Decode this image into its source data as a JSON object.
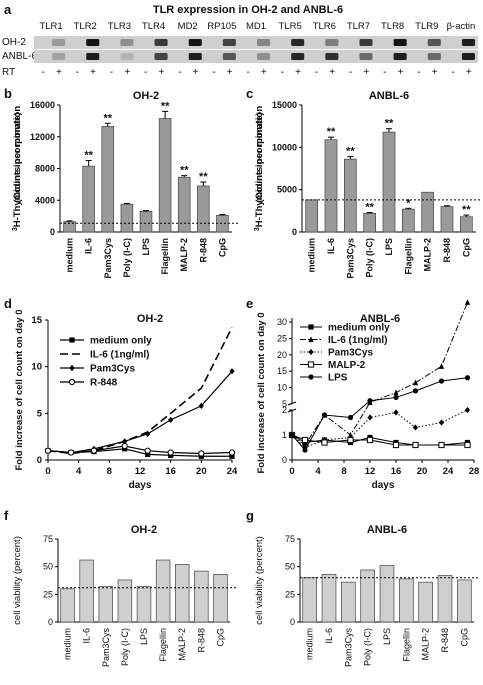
{
  "figure_title": "TLR expression in OH-2 and ANBL-6",
  "panel_letters": [
    "a",
    "b",
    "c",
    "d",
    "e",
    "f",
    "g"
  ],
  "gel": {
    "lanes": [
      "TLR1",
      "TLR2",
      "TLR3",
      "TLR4",
      "MD2",
      "RP105",
      "MD1",
      "TLR5",
      "TLR6",
      "TLR7",
      "TLR8",
      "TLR9",
      "β-actin"
    ],
    "rows": [
      "OH-2",
      "ANBL-6"
    ],
    "rt_label": "RT",
    "rt_marks": [
      "-",
      "+",
      "-",
      "+",
      "-",
      "+",
      "-",
      "+",
      "-",
      "+",
      "-",
      "+",
      "-",
      "+",
      "-",
      "+",
      "-",
      "+",
      "-",
      "+",
      "-",
      "+",
      "-",
      "+",
      "-",
      "+"
    ],
    "band_intensity": {
      "OH-2": [
        [
          0,
          0.25
        ],
        [
          0,
          0.95
        ],
        [
          0,
          0.3
        ],
        [
          0,
          0.75
        ],
        [
          0,
          0.95
        ],
        [
          0,
          0.7
        ],
        [
          0,
          0.35
        ],
        [
          0,
          0.85
        ],
        [
          0,
          0.4
        ],
        [
          0,
          0.75
        ],
        [
          0,
          0.95
        ],
        [
          0,
          0.6
        ],
        [
          0,
          0.9
        ]
      ],
      "ANBL-6": [
        [
          0,
          0.2
        ],
        [
          0,
          0.9
        ],
        [
          0,
          0.1
        ],
        [
          0,
          0.7
        ],
        [
          0,
          0.9
        ],
        [
          0,
          0.6
        ],
        [
          0,
          0.3
        ],
        [
          0,
          0.85
        ],
        [
          0,
          0.8
        ],
        [
          0,
          0.5
        ],
        [
          0,
          0.9
        ],
        [
          0,
          0.5
        ],
        [
          0,
          0.9
        ]
      ]
    }
  },
  "chart_data": [
    {
      "panel": "b",
      "type": "bar",
      "title": "OH-2",
      "ylabel": "3H-Thymidine incorporation (Counts per minute)",
      "ylim": [
        0,
        16000
      ],
      "yticks": [
        0,
        4000,
        8000,
        12000,
        16000
      ],
      "categories": [
        "medium",
        "IL-6",
        "Pam3Cys",
        "Poly (I-C)",
        "LPS",
        "Flagellin",
        "MALP-2",
        "R-848",
        "CpG"
      ],
      "values": [
        1300,
        8300,
        13300,
        3500,
        2600,
        14300,
        6900,
        5800,
        2100
      ],
      "errors": [
        100,
        700,
        400,
        100,
        100,
        900,
        200,
        500,
        100
      ],
      "annotations": [
        "",
        "**",
        "**",
        "",
        "",
        "**",
        "**",
        "**",
        ""
      ],
      "baseline": 1100
    },
    {
      "panel": "c",
      "type": "bar",
      "title": "ANBL-6",
      "ylabel": "3H-Thymidine incorporation (Counts per minute)",
      "ylim": [
        0,
        15000
      ],
      "yticks": [
        0,
        5000,
        10000,
        15000
      ],
      "categories": [
        "medium",
        "IL-6",
        "Pam3Cys",
        "Poly (I-C)",
        "LPS",
        "Flagellin",
        "MALP-2",
        "R-848",
        "CpG"
      ],
      "values": [
        3800,
        10900,
        8600,
        2200,
        11800,
        2700,
        4700,
        3000,
        1800
      ],
      "errors": [
        0,
        300,
        300,
        100,
        400,
        100,
        0,
        100,
        200
      ],
      "annotations": [
        "",
        "**",
        "**",
        "**",
        "**",
        "*",
        "",
        "",
        "**"
      ],
      "baseline": 3800
    },
    {
      "panel": "d",
      "type": "line",
      "title": "OH-2",
      "xlabel": "days",
      "ylabel": "Fold increase of cell count on day 0",
      "xlim": [
        0,
        24
      ],
      "ylim": [
        0,
        15
      ],
      "xticks": [
        0,
        4,
        8,
        12,
        16,
        20,
        24
      ],
      "yticks": [
        0,
        5,
        10,
        15
      ],
      "x": [
        0,
        3,
        6,
        10,
        13,
        16,
        20,
        24
      ],
      "series": [
        {
          "name": "medium only",
          "style": "solid",
          "marker": "square",
          "values": [
            1,
            0.8,
            0.9,
            1.2,
            0.6,
            0.5,
            0.4,
            0.4
          ]
        },
        {
          "name": "IL-6 (1ng/ml)",
          "style": "dashed",
          "marker": "none",
          "values": [
            1,
            0.7,
            1.0,
            2.0,
            3.0,
            5.0,
            7.7,
            14.2
          ]
        },
        {
          "name": "Pam3Cys",
          "style": "solid",
          "marker": "diamond",
          "values": [
            1,
            0.8,
            1.2,
            2.0,
            2.8,
            4.3,
            5.8,
            9.5
          ]
        },
        {
          "name": "R-848",
          "style": "solid",
          "marker": "circle-open",
          "values": [
            1,
            0.8,
            1.0,
            1.5,
            1.0,
            0.8,
            0.7,
            0.8
          ]
        }
      ]
    },
    {
      "panel": "e",
      "type": "line",
      "title": "ANBL-6",
      "xlabel": "days",
      "ylabel": "Fold increase of cell count on day 0",
      "xlim": [
        0,
        28
      ],
      "xticks": [
        0,
        4,
        8,
        12,
        16,
        20,
        24,
        28
      ],
      "y_axis_break": true,
      "yticks": [
        0,
        1,
        2,
        5,
        10,
        15,
        20,
        25,
        30
      ],
      "x": [
        0,
        2,
        5,
        9,
        12,
        16,
        19,
        23,
        27
      ],
      "series": [
        {
          "name": "medium only",
          "style": "solid",
          "marker": "square",
          "values": [
            1.0,
            0.7,
            0.8,
            0.7,
            0.9,
            0.7,
            0.6,
            0.6,
            0.7
          ]
        },
        {
          "name": "IL-6 (1ng/ml)",
          "style": "dashdot",
          "marker": "triangle",
          "values": [
            1.0,
            0.6,
            1.8,
            1.0,
            5.5,
            8.5,
            11.5,
            16.5,
            36
          ]
        },
        {
          "name": "Pam3Cys",
          "style": "dotted",
          "marker": "diamond",
          "values": [
            1.0,
            0.5,
            0.8,
            0.9,
            1.7,
            1.9,
            1.3,
            1.5,
            2.0
          ]
        },
        {
          "name": "MALP-2",
          "style": "solid",
          "marker": "square-open",
          "values": [
            1.0,
            0.8,
            0.7,
            0.8,
            0.8,
            0.6,
            0.6,
            0.6,
            0.6
          ]
        },
        {
          "name": "LPS",
          "style": "solid",
          "marker": "circle",
          "values": [
            1.0,
            0.4,
            1.8,
            1.7,
            6.0,
            7.0,
            9.0,
            12.0,
            13.0
          ]
        }
      ]
    },
    {
      "panel": "f",
      "type": "bar",
      "title": "OH-2",
      "ylabel": "cell viability (percent)",
      "ylim": [
        0,
        75
      ],
      "yticks": [
        0,
        25,
        50,
        75
      ],
      "categories": [
        "medium",
        "IL-6",
        "Pam3Cys",
        "Poly (I-C)",
        "LPS",
        "Flagellin",
        "MALP-2",
        "R-848",
        "CpG"
      ],
      "values": [
        30,
        56,
        32,
        38,
        32,
        56,
        52,
        46,
        43
      ],
      "baseline": 31
    },
    {
      "panel": "g",
      "type": "bar",
      "title": "ANBL-6",
      "ylabel": "cell viability (percent)",
      "ylim": [
        0,
        75
      ],
      "yticks": [
        0,
        25,
        50,
        75
      ],
      "categories": [
        "medium",
        "IL-6",
        "Pam3Cys",
        "Poly (I-C)",
        "LPS",
        "Flagellin",
        "MALP-2",
        "R-848",
        "CpG"
      ],
      "values": [
        40,
        43,
        36,
        47,
        51,
        39,
        36,
        42,
        38
      ],
      "baseline": 40
    }
  ]
}
